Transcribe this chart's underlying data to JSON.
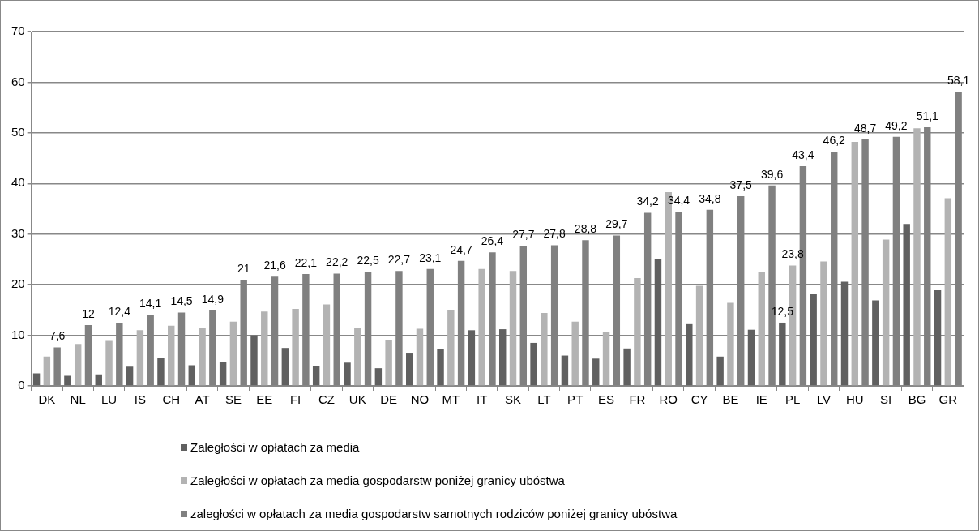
{
  "chart_data": {
    "type": "bar",
    "categories": [
      "DK",
      "NL",
      "LU",
      "IS",
      "CH",
      "AT",
      "SE",
      "EE",
      "FI",
      "CZ",
      "UK",
      "DE",
      "NO",
      "MT",
      "IT",
      "SK",
      "LT",
      "PT",
      "ES",
      "FR",
      "RO",
      "CY",
      "BE",
      "IE",
      "PL",
      "LV",
      "HU",
      "SI",
      "BG",
      "GR"
    ],
    "series": [
      {
        "name": "Zaległości w opłatach za media",
        "color": "#606060",
        "values": [
          2.5,
          2.0,
          2.3,
          3.8,
          5.6,
          4.1,
          4.7,
          10.0,
          7.5,
          4.0,
          4.6,
          3.5,
          6.4,
          7.3,
          11.0,
          11.2,
          8.5,
          6.0,
          5.4,
          7.4,
          25.1,
          12.2,
          5.8,
          11.1,
          12.5,
          18.1,
          20.6,
          16.9,
          32.0,
          18.9
        ],
        "value_labels": [
          null,
          null,
          null,
          null,
          null,
          null,
          null,
          null,
          null,
          null,
          null,
          null,
          null,
          null,
          null,
          null,
          null,
          null,
          null,
          null,
          null,
          null,
          null,
          null,
          "12,5",
          null,
          null,
          null,
          null,
          null
        ]
      },
      {
        "name": "Zaległości w opłatach za media gospodarstw poniżej granicy ubóstwa",
        "color": "#b3b3b3",
        "values": [
          5.8,
          8.3,
          8.9,
          11.0,
          11.9,
          11.5,
          12.7,
          14.7,
          15.2,
          16.1,
          11.5,
          9.1,
          11.3,
          15.0,
          23.1,
          22.7,
          14.4,
          12.7,
          10.6,
          21.3,
          38.3,
          19.8,
          16.4,
          22.6,
          23.8,
          24.6,
          48.2,
          28.9,
          50.9,
          37.1
        ],
        "value_labels": [
          null,
          null,
          null,
          null,
          null,
          null,
          null,
          null,
          null,
          null,
          null,
          null,
          null,
          null,
          null,
          null,
          null,
          null,
          null,
          null,
          null,
          null,
          null,
          null,
          "23,8",
          null,
          null,
          null,
          null,
          null
        ]
      },
      {
        "name": "zaległości w opłatach za media gospodarstw samotnych rodziców poniżej granicy ubóstwa",
        "color": "#808080",
        "values": [
          7.6,
          12,
          12.4,
          14.1,
          14.5,
          14.9,
          21,
          21.6,
          22.1,
          22.2,
          22.5,
          22.7,
          23.1,
          24.7,
          26.4,
          27.7,
          27.8,
          28.8,
          29.7,
          34.2,
          34.4,
          34.8,
          37.5,
          39.6,
          43.4,
          46.2,
          48.7,
          49.2,
          51.1,
          58.1
        ],
        "value_labels": [
          "7,6",
          "12",
          "12,4",
          "14,1",
          "14,5",
          "14,9",
          "21",
          "21,6",
          "22,1",
          "22,2",
          "22,5",
          "22,7",
          "23,1",
          "24,7",
          "26,4",
          "27,7",
          "27,8",
          "28,8",
          "29,7",
          "34,2",
          "34,4",
          "34,8",
          "37,5",
          "39,6",
          "43,4",
          "46,2",
          "48,7",
          "49,2",
          "51,1",
          "58,1"
        ]
      }
    ],
    "ylim": [
      0,
      70
    ],
    "yticks": [
      0,
      10,
      20,
      30,
      40,
      50,
      60,
      70
    ],
    "grid": "y",
    "legend": "bottom"
  }
}
